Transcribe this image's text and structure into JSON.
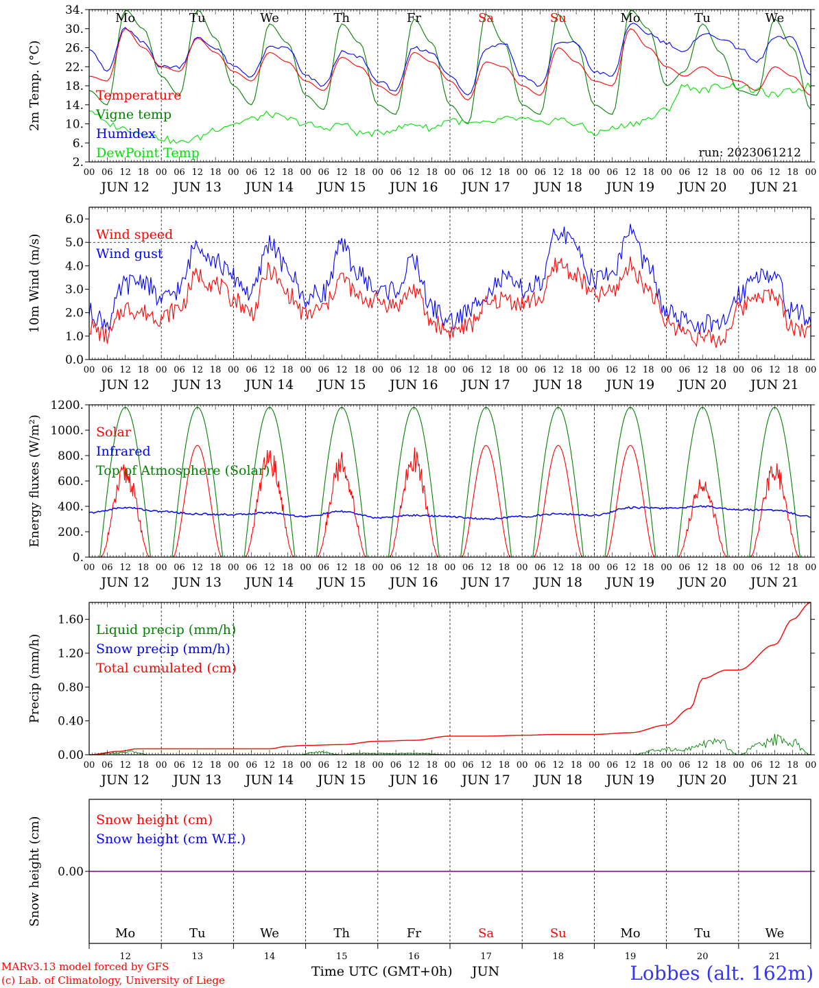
{
  "credits": {
    "line1": "MARv3.13 model forced by GFS",
    "line2": "(c) Lab. of Climatology, University of Liege",
    "station": "Lobbes (alt. 162m)",
    "xlabel": "Time UTC (GMT+0h)",
    "month": "JUN"
  },
  "colors": {
    "red": "#ff0000",
    "blue": "#0000ff",
    "green": "#008000",
    "light_green": "#00e000",
    "purple": "#800080",
    "axis": "#000000"
  },
  "days": {
    "weekday_labels": [
      "Mo",
      "Tu",
      "We",
      "Th",
      "Fr",
      "Sa",
      "Su",
      "Mo",
      "Tu",
      "We"
    ],
    "weekday_colors": [
      "black",
      "black",
      "black",
      "black",
      "black",
      "red",
      "red",
      "black",
      "black",
      "black"
    ],
    "date_labels": [
      "JUN 12",
      "JUN 13",
      "JUN 14",
      "JUN 15",
      "JUN 16",
      "JUN 17",
      "JUN 18",
      "JUN 19",
      "JUN 20",
      "JUN 21"
    ],
    "day_numbers": [
      "12",
      "13",
      "14",
      "15",
      "16",
      "17",
      "18",
      "19",
      "20",
      "21"
    ],
    "hour_ticks": [
      "00",
      "06",
      "12",
      "18"
    ],
    "final_hour": "00"
  },
  "chart_data": [
    {
      "type": "line",
      "id": "temp",
      "ylabel": "2m Temp. (°C)",
      "ylim": [
        2,
        34
      ],
      "yticks": [
        "34.",
        "30.",
        "26.",
        "22.",
        "18.",
        "14.",
        "10.",
        "6.",
        "2."
      ],
      "annotation": "run: 2023061212",
      "x_unit": "hours since 2023-06-12 00 UTC",
      "series": [
        {
          "name": "Temperature",
          "color": "#ff0000",
          "x": [
            0,
            6,
            12,
            18,
            24,
            30,
            36,
            42,
            48,
            54,
            60,
            66,
            72,
            78,
            84,
            90,
            96,
            102,
            108,
            114,
            120,
            126,
            132,
            138,
            144,
            150,
            156,
            162,
            168,
            174,
            180,
            186,
            192,
            198,
            204,
            210,
            216,
            222,
            228,
            234,
            240
          ],
          "y": [
            20,
            19,
            30,
            26,
            22,
            21,
            28,
            25,
            21,
            19,
            25,
            23,
            19,
            17,
            24,
            22,
            18,
            16,
            25,
            23,
            19,
            15,
            23,
            22,
            18,
            16,
            26,
            23,
            19,
            18,
            30,
            26,
            22,
            20,
            22,
            20,
            19,
            17,
            22,
            20,
            16
          ]
        },
        {
          "name": "Vigne temp",
          "color": "#008000",
          "x": [
            0,
            6,
            12,
            18,
            24,
            30,
            36,
            42,
            48,
            54,
            60,
            66,
            72,
            78,
            84,
            90,
            96,
            102,
            108,
            114,
            120,
            126,
            132,
            138,
            144,
            150,
            156,
            162,
            168,
            174,
            180,
            186,
            192,
            198,
            204,
            210,
            216,
            222,
            228,
            234,
            240
          ],
          "y": [
            17,
            14,
            34,
            30,
            20,
            16,
            34,
            28,
            18,
            14,
            31,
            27,
            16,
            13,
            31,
            27,
            14,
            12,
            32,
            27,
            14,
            10,
            33,
            27,
            14,
            12,
            33,
            27,
            14,
            12,
            34,
            30,
            18,
            21,
            31,
            25,
            17,
            16,
            32,
            26,
            13
          ]
        },
        {
          "name": "Humidex",
          "color": "#0000ff",
          "x": [
            0,
            6,
            12,
            18,
            24,
            30,
            36,
            42,
            48,
            54,
            60,
            66,
            72,
            78,
            84,
            90,
            96,
            102,
            108,
            114,
            120,
            126,
            132,
            138,
            144,
            150,
            156,
            162,
            168,
            174,
            180,
            186,
            192,
            198,
            204,
            210,
            216,
            222,
            228,
            234,
            240
          ],
          "y": [
            26,
            21,
            30,
            27,
            22,
            22,
            28,
            26,
            22,
            20,
            26,
            26,
            20,
            18,
            25,
            24,
            19,
            17,
            26,
            25,
            20,
            16,
            26,
            27,
            20,
            18,
            27,
            27,
            21,
            20,
            31,
            29,
            27,
            25,
            29,
            28,
            26,
            23,
            28,
            28,
            20
          ]
        },
        {
          "name": "DewPoint Temp",
          "color": "#00e000",
          "x": [
            0,
            6,
            12,
            18,
            24,
            30,
            36,
            42,
            48,
            54,
            60,
            66,
            72,
            78,
            84,
            90,
            96,
            102,
            108,
            114,
            120,
            126,
            132,
            138,
            144,
            150,
            156,
            162,
            168,
            174,
            180,
            186,
            192,
            198,
            204,
            210,
            216,
            222,
            228,
            234,
            240
          ],
          "y": [
            13,
            10,
            9,
            8,
            7,
            6,
            7,
            9,
            10,
            11,
            12,
            11,
            10,
            9,
            10,
            8,
            8,
            9,
            10,
            9,
            11,
            10,
            10,
            11,
            11,
            10,
            11,
            10,
            8,
            9,
            10,
            11,
            13,
            18,
            17,
            18,
            18,
            17,
            16,
            17,
            18
          ]
        }
      ]
    },
    {
      "type": "line",
      "id": "wind",
      "ylabel": "10m Wind (m/s)",
      "ylim": [
        0,
        6.5
      ],
      "yticks": [
        "6.0",
        "5.0",
        "4.0",
        "3.0",
        "2.0",
        "1.0",
        "0.0"
      ],
      "x_unit": "hours since 2023-06-12 00 UTC",
      "series": [
        {
          "name": "Wind speed",
          "color": "#ff0000",
          "x": [
            0,
            6,
            12,
            18,
            24,
            30,
            36,
            42,
            48,
            54,
            60,
            66,
            72,
            78,
            84,
            90,
            96,
            102,
            108,
            114,
            120,
            126,
            132,
            138,
            144,
            150,
            156,
            162,
            168,
            174,
            180,
            186,
            192,
            198,
            204,
            210,
            216,
            222,
            228,
            234,
            240
          ],
          "y": [
            1.4,
            1.0,
            2.2,
            2.0,
            1.8,
            2.2,
            3.6,
            3.2,
            2.6,
            2.0,
            3.8,
            2.8,
            1.9,
            2.2,
            3.5,
            2.6,
            2.5,
            2.3,
            3.0,
            1.6,
            1.2,
            1.4,
            2.3,
            2.6,
            2.4,
            2.6,
            4.1,
            3.6,
            2.7,
            2.9,
            4.0,
            3.0,
            1.6,
            1.2,
            0.9,
            0.8,
            2.1,
            2.8,
            2.7,
            1.4,
            1.2
          ]
        },
        {
          "name": "Wind gust",
          "color": "#0000ff",
          "x": [
            0,
            6,
            12,
            18,
            24,
            30,
            36,
            42,
            48,
            54,
            60,
            66,
            72,
            78,
            84,
            90,
            96,
            102,
            108,
            114,
            120,
            126,
            132,
            138,
            144,
            150,
            156,
            162,
            168,
            174,
            180,
            186,
            192,
            198,
            204,
            210,
            216,
            222,
            228,
            234,
            240
          ],
          "y": [
            2.0,
            1.6,
            3.2,
            3.4,
            2.5,
            3.0,
            5.0,
            4.2,
            3.5,
            2.8,
            5.0,
            3.8,
            2.6,
            2.9,
            4.8,
            3.6,
            2.9,
            3.0,
            4.2,
            2.2,
            1.6,
            2.0,
            2.9,
            3.4,
            3.0,
            3.2,
            5.5,
            4.8,
            3.4,
            3.7,
            5.5,
            3.9,
            2.0,
            1.6,
            1.5,
            1.4,
            2.8,
            3.7,
            3.5,
            2.0,
            1.8
          ]
        }
      ]
    },
    {
      "type": "line",
      "id": "energy",
      "ylabel": "Energy fluxes (W/m²)",
      "ylim": [
        0,
        1200
      ],
      "yticks": [
        "1200.",
        "1000.",
        "800.",
        "600.",
        "400.",
        "200.",
        "0."
      ],
      "x_unit": "hours since 2023-06-12 00 UTC",
      "series": [
        {
          "name": "Solar",
          "color": "#ff0000",
          "daily_peaks": [
            750,
            880,
            870,
            830,
            880,
            880,
            880,
            880,
            650,
            760
          ]
        },
        {
          "name": "Infrared",
          "color": "#0000ff",
          "x": [
            0,
            12,
            24,
            36,
            48,
            60,
            72,
            84,
            96,
            108,
            120,
            132,
            144,
            156,
            168,
            180,
            192,
            204,
            216,
            228,
            240
          ],
          "y": [
            350,
            390,
            360,
            340,
            335,
            350,
            320,
            360,
            310,
            330,
            320,
            300,
            320,
            340,
            330,
            390,
            385,
            400,
            375,
            370,
            320
          ]
        },
        {
          "name": "Top of Atmosphere (Solar)",
          "color": "#008000",
          "daily_peak": 1180
        }
      ]
    },
    {
      "type": "line",
      "id": "precip",
      "ylabel": "Precip (mm/h)",
      "ylim": [
        0,
        1.8
      ],
      "yticks": [
        "1.60",
        "1.20",
        "0.80",
        "0.40",
        "0.00"
      ],
      "x_unit": "hours since 2023-06-12 00 UTC",
      "series": [
        {
          "name": "Liquid precip (mm/h)",
          "color": "#008000",
          "x": [
            0,
            10,
            14,
            20,
            70,
            76,
            84,
            88,
            110,
            120,
            180,
            192,
            198,
            204,
            210,
            216,
            222,
            228,
            234,
            240
          ],
          "y": [
            0,
            0.03,
            0.05,
            0,
            0,
            0.05,
            0,
            0.02,
            0.02,
            0,
            0,
            0.1,
            0.08,
            0.18,
            0.2,
            0,
            0.15,
            0.25,
            0.2,
            0
          ]
        },
        {
          "name": "Snow precip (mm/h)",
          "color": "#0000ff",
          "x": [
            0,
            240
          ],
          "y": [
            0,
            0
          ]
        },
        {
          "name": "Total cumulated (cm)",
          "color": "#ff0000",
          "x": [
            0,
            10,
            16,
            24,
            60,
            66,
            72,
            84,
            96,
            108,
            120,
            132,
            144,
            156,
            168,
            180,
            192,
            200,
            204,
            212,
            216,
            228,
            234,
            240
          ],
          "y": [
            0,
            0.04,
            0.07,
            0.07,
            0.07,
            0.1,
            0.11,
            0.12,
            0.16,
            0.17,
            0.22,
            0.22,
            0.23,
            0.24,
            0.24,
            0.26,
            0.35,
            0.55,
            0.9,
            1.0,
            1.0,
            1.3,
            1.6,
            1.8
          ]
        }
      ]
    },
    {
      "type": "line",
      "id": "snow",
      "ylabel": "Snow height (cm)",
      "yticks": [
        "0.00"
      ],
      "x_unit": "hours since 2023-06-12 00 UTC",
      "series": [
        {
          "name": "Snow height (cm)",
          "color": "#ff0000",
          "x": [
            0,
            240
          ],
          "y": [
            0,
            0
          ]
        },
        {
          "name": "Snow height (cm W.E.)",
          "color": "#0000ff",
          "x": [
            0,
            240
          ],
          "y": [
            0,
            0
          ]
        }
      ]
    }
  ]
}
